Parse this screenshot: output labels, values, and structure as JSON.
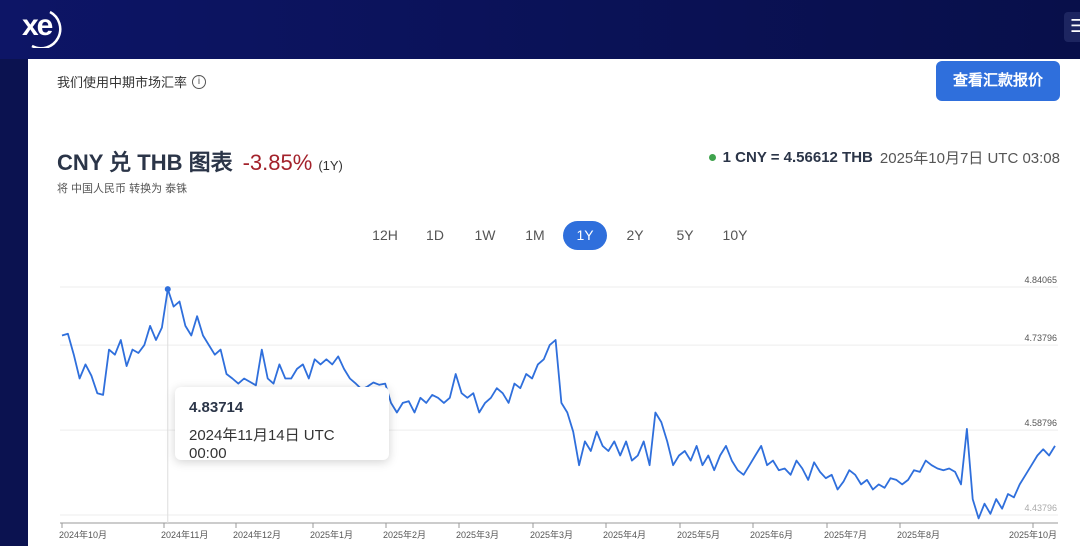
{
  "header": {
    "logo": "xe",
    "menu_icon": "hamburger-icon"
  },
  "notice": {
    "text": "我们使用中期市场汇率",
    "icon": "info-icon"
  },
  "quote_button": "查看汇款报价",
  "title": {
    "text": "CNY 兑 THB 图表",
    "change": "-3.85%",
    "period": "(1Y)",
    "subtitle": "将 中国人民币 转换为 泰铢"
  },
  "rate": {
    "text": "1 CNY = 4.56612 THB",
    "timestamp": "2025年10月7日 UTC 03:08",
    "status_color": "#3fa34d"
  },
  "ranges": [
    {
      "label": "12H"
    },
    {
      "label": "1D"
    },
    {
      "label": "1W"
    },
    {
      "label": "1M"
    },
    {
      "label": "1Y",
      "active": true
    },
    {
      "label": "2Y"
    },
    {
      "label": "5Y"
    },
    {
      "label": "10Y"
    }
  ],
  "tooltip": {
    "value": "4.83714",
    "date": "2024年11月14日 UTC 00:00"
  },
  "chart_data": {
    "type": "line",
    "title": "CNY 兑 THB 图表",
    "series_color": "#2f6fdc",
    "y_ticks": [
      4.84065,
      4.73796,
      4.58796,
      4.43796
    ],
    "y_tick_labels": [
      "4.84065",
      "4.73796",
      "4.58796",
      "4.43796"
    ],
    "x_tick_labels": [
      "2024年10月",
      "2024年11月",
      "2024年12月",
      "2025年1月",
      "2025年2月",
      "2025年3月",
      "2025年3月",
      "2025年4月",
      "2025年5月",
      "2025年6月",
      "2025年7月",
      "2025年8月",
      "2025年10月"
    ],
    "highlight": {
      "index": 18,
      "value": 4.83714
    },
    "values": [
      4.755,
      4.758,
      4.721,
      4.679,
      4.704,
      4.684,
      4.653,
      4.65,
      4.73,
      4.721,
      4.747,
      4.701,
      4.73,
      4.724,
      4.738,
      4.772,
      4.747,
      4.769,
      4.837,
      4.806,
      4.815,
      4.772,
      4.755,
      4.789,
      4.755,
      4.738,
      4.721,
      4.73,
      4.687,
      4.679,
      4.67,
      4.679,
      4.673,
      4.667,
      4.73,
      4.679,
      4.67,
      4.704,
      4.679,
      4.679,
      4.696,
      4.704,
      4.679,
      4.713,
      4.704,
      4.713,
      4.704,
      4.718,
      4.696,
      4.679,
      4.67,
      4.66,
      4.665,
      4.672,
      4.668,
      4.67,
      4.636,
      4.619,
      4.636,
      4.639,
      4.619,
      4.645,
      4.636,
      4.65,
      4.645,
      4.636,
      4.645,
      4.687,
      4.653,
      4.645,
      4.653,
      4.619,
      4.636,
      4.645,
      4.662,
      4.653,
      4.636,
      4.67,
      4.662,
      4.687,
      4.679,
      4.704,
      4.713,
      4.738,
      4.747,
      4.636,
      4.619,
      4.585,
      4.526,
      4.568,
      4.551,
      4.585,
      4.56,
      4.551,
      4.568,
      4.543,
      4.568,
      4.534,
      4.543,
      4.568,
      4.526,
      4.619,
      4.602,
      4.568,
      4.526,
      4.543,
      4.551,
      4.534,
      4.56,
      4.526,
      4.543,
      4.517,
      4.543,
      4.56,
      4.534,
      4.517,
      4.509,
      4.526,
      4.543,
      4.56,
      4.526,
      4.534,
      4.517,
      4.52,
      4.509,
      4.534,
      4.52,
      4.5,
      4.531,
      4.514,
      4.503,
      4.509,
      4.483,
      4.497,
      4.517,
      4.509,
      4.492,
      4.5,
      4.483,
      4.492,
      4.486,
      4.503,
      4.5,
      4.492,
      4.5,
      4.517,
      4.514,
      4.534,
      4.526,
      4.52,
      4.517,
      4.52,
      4.514,
      4.492,
      4.59,
      4.466,
      4.432,
      4.458,
      4.44,
      4.466,
      4.449,
      4.475,
      4.469,
      4.492,
      4.509,
      4.526,
      4.543,
      4.554,
      4.543,
      4.56
    ]
  }
}
